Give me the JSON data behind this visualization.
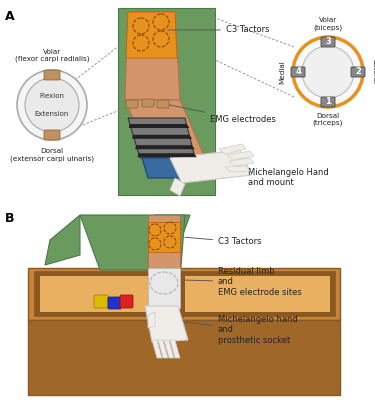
{
  "bg_color": "#ffffff",
  "panel_A_label": "A",
  "panel_B_label": "B",
  "wrist_circle_label_top": "Volar\n(flexor carpi radialis)",
  "wrist_circle_label_bottom": "Dorsal\n(extensor carpi ulnaris)",
  "wrist_circle_flexion": "Flexion",
  "wrist_circle_extension": "Extension",
  "arm_circle_label_top": "Volar\n(biceps)",
  "arm_circle_label_bottom": "Dorsal\n(triceps)",
  "arm_circle_label_left": "Medial",
  "arm_circle_label_right": "Lateral",
  "label_c3_tactors_A": "C3 Tactors",
  "label_emg_A": "EMG electrodes",
  "label_hand_A": "Michelangelo Hand\nand mount",
  "label_c3_tactors_B": "C3 Tactors",
  "label_residual_B": "Residual limb\nand\nEMG electrode sites",
  "label_hand_B": "Michelangelo hand\nand\nprosthetic socket",
  "skin_color": "#D4956B",
  "skin_dark": "#B87050",
  "green_color": "#6B9A5E",
  "green_dark": "#4A7A4A",
  "orange_color": "#E8921E",
  "orange_dark": "#C06810",
  "hand_color": "#F0EDE8",
  "hand_dark": "#CCCCCC",
  "blue_color": "#3A6BA0",
  "gray_brace": "#7A7A7A",
  "gray_dark": "#333333",
  "table_brown": "#C8843A",
  "table_dark": "#8B5820",
  "table_light": "#E8B060",
  "table_side": "#A06828"
}
